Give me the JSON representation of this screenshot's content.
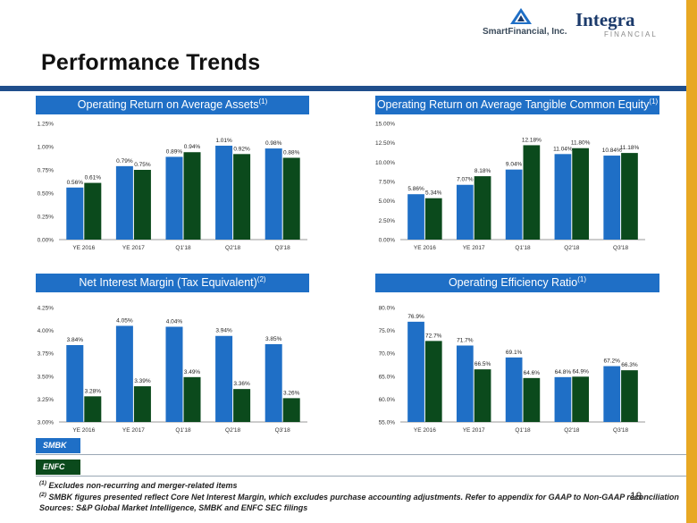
{
  "header": {
    "title": "Performance Trends",
    "logo_left": "SmartFinancial, Inc.",
    "logo_right": "Integra",
    "logo_right_sub": "FINANCIAL"
  },
  "legend": {
    "smbk": {
      "label": "SMBK",
      "color": "#1F6FC6"
    },
    "enfc": {
      "label": "ENFC",
      "color": "#0B4A1C"
    }
  },
  "footnotes": {
    "f1_mark": "(1)",
    "f1": "Excludes non-recurring and merger-related items",
    "f2_mark": "(2)",
    "f2": "SMBK figures presented reflect Core Net Interest Margin, which excludes purchase accounting adjustments. Refer to appendix for GAAP to Non-GAAP reconciliation",
    "sources": "Sources: S&P Global Market Intelligence, SMBK and ENFC SEC filings"
  },
  "page_number": "18",
  "chart_data": [
    {
      "type": "bar",
      "title": "Operating Return on Average Assets",
      "title_sup": "(1)",
      "categories": [
        "YE 2016",
        "YE 2017",
        "Q1'18",
        "Q2'18",
        "Q3'18"
      ],
      "yticks": [
        "0.00%",
        "0.25%",
        "0.50%",
        "0.75%",
        "1.00%",
        "1.25%"
      ],
      "ylim": [
        0,
        1.25
      ],
      "grid": false,
      "series": [
        {
          "name": "SMBK",
          "values": [
            0.56,
            0.79,
            0.89,
            1.01,
            0.98
          ],
          "labels": [
            "0.56%",
            "0.79%",
            "0.89%",
            "1.01%",
            "0.98%"
          ]
        },
        {
          "name": "ENFC",
          "values": [
            0.61,
            0.75,
            0.94,
            0.92,
            0.88
          ],
          "labels": [
            "0.61%",
            "0.75%",
            "0.94%",
            "0.92%",
            "0.88%"
          ]
        }
      ]
    },
    {
      "type": "bar",
      "title": "Operating Return on Average Tangible Common Equity",
      "title_sup": "(1)",
      "categories": [
        "YE 2016",
        "YE 2017",
        "Q1'18",
        "Q2'18",
        "Q3'18"
      ],
      "yticks": [
        "0.00%",
        "2.50%",
        "5.00%",
        "7.50%",
        "10.00%",
        "12.50%",
        "15.00%"
      ],
      "ylim": [
        0,
        15
      ],
      "grid": false,
      "series": [
        {
          "name": "SMBK",
          "values": [
            5.86,
            7.07,
            9.04,
            11.04,
            10.84
          ],
          "labels": [
            "5.86%",
            "7.07%",
            "9.04%",
            "11.04%",
            "10.84%"
          ]
        },
        {
          "name": "ENFC",
          "values": [
            5.34,
            8.18,
            12.18,
            11.8,
            11.18
          ],
          "labels": [
            "5.34%",
            "8.18%",
            "12.18%",
            "11.80%",
            "11.18%"
          ]
        }
      ]
    },
    {
      "type": "bar",
      "title": "Net Interest Margin (Tax Equivalent)",
      "title_sup": "(2)",
      "categories": [
        "YE 2016",
        "YE 2017",
        "Q1'18",
        "Q2'18",
        "Q3'18"
      ],
      "yticks": [
        "3.00%",
        "3.25%",
        "3.50%",
        "3.75%",
        "4.00%",
        "4.25%"
      ],
      "ylim": [
        3.0,
        4.25
      ],
      "grid": false,
      "series": [
        {
          "name": "SMBK",
          "values": [
            3.84,
            4.05,
            4.04,
            3.94,
            3.85
          ],
          "labels": [
            "3.84%",
            "4.05%",
            "4.04%",
            "3.94%",
            "3.85%"
          ]
        },
        {
          "name": "ENFC",
          "values": [
            3.28,
            3.39,
            3.49,
            3.36,
            3.26
          ],
          "labels": [
            "3.28%",
            "3.39%",
            "3.49%",
            "3.36%",
            "3.26%"
          ]
        }
      ]
    },
    {
      "type": "bar",
      "title": "Operating Efficiency Ratio",
      "title_sup": "(1)",
      "categories": [
        "YE 2016",
        "YE 2017",
        "Q1'18",
        "Q2'18",
        "Q3'18"
      ],
      "yticks": [
        "55.0%",
        "60.0%",
        "65.0%",
        "70.0%",
        "75.0%",
        "80.0%"
      ],
      "ylim": [
        55,
        80
      ],
      "grid": false,
      "series": [
        {
          "name": "SMBK",
          "values": [
            76.9,
            71.7,
            69.1,
            64.8,
            67.2
          ],
          "labels": [
            "76.9%",
            "71.7%",
            "69.1%",
            "64.8%",
            "67.2%"
          ]
        },
        {
          "name": "ENFC",
          "values": [
            72.7,
            66.5,
            64.6,
            64.9,
            66.3
          ],
          "labels": [
            "72.7%",
            "66.5%",
            "64.6%",
            "64.9%",
            "66.3%"
          ]
        }
      ]
    }
  ]
}
